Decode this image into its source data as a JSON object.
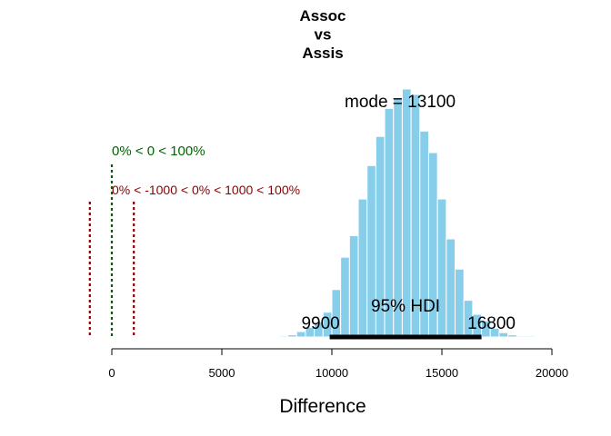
{
  "colors": {
    "bar_fill": "#87CEEB",
    "bar_edge": "#ffffff",
    "comp_line": "#006400",
    "rope_line": "#8B0000",
    "hdi_line": "#000000"
  },
  "chart_data": {
    "type": "bar",
    "title_lines": [
      "Assoc",
      "vs",
      "Assis"
    ],
    "xlabel": "Difference",
    "ylabel": "",
    "xlim": [
      0,
      20000
    ],
    "x_ticks": [
      0,
      5000,
      10000,
      15000,
      20000
    ],
    "x_tick_labels": [
      "0",
      "5000",
      "10000",
      "15000",
      "20000"
    ],
    "grid": false,
    "histogram": {
      "bin_width": 400,
      "bins": [
        {
          "start": 7600,
          "count": 1
        },
        {
          "start": 8000,
          "count": 2
        },
        {
          "start": 8400,
          "count": 5
        },
        {
          "start": 8800,
          "count": 9
        },
        {
          "start": 9200,
          "count": 14
        },
        {
          "start": 9600,
          "count": 23
        },
        {
          "start": 10000,
          "count": 44
        },
        {
          "start": 10400,
          "count": 74
        },
        {
          "start": 10800,
          "count": 94
        },
        {
          "start": 11200,
          "count": 128
        },
        {
          "start": 11600,
          "count": 159
        },
        {
          "start": 12000,
          "count": 186
        },
        {
          "start": 12400,
          "count": 212
        },
        {
          "start": 12800,
          "count": 222
        },
        {
          "start": 13200,
          "count": 230
        },
        {
          "start": 13600,
          "count": 225
        },
        {
          "start": 14000,
          "count": 191
        },
        {
          "start": 14400,
          "count": 171
        },
        {
          "start": 14800,
          "count": 128
        },
        {
          "start": 15200,
          "count": 91
        },
        {
          "start": 15600,
          "count": 63
        },
        {
          "start": 16000,
          "count": 34
        },
        {
          "start": 16400,
          "count": 21
        },
        {
          "start": 16800,
          "count": 15
        },
        {
          "start": 17200,
          "count": 8
        },
        {
          "start": 17600,
          "count": 4
        },
        {
          "start": 18000,
          "count": 2
        },
        {
          "start": 18400,
          "count": 1
        },
        {
          "start": 18800,
          "count": 1
        }
      ]
    },
    "mode": {
      "value": 13100,
      "label": "mode = 13100"
    },
    "hdi": {
      "low": 9900,
      "high": 16800,
      "label": "95% HDI",
      "low_label": "9900",
      "high_label": "16800"
    },
    "comparison": {
      "value": 0,
      "label": "0% < 0 < 100%"
    },
    "rope": {
      "low": -1000,
      "high": 1000,
      "label": "0% < -1000 < 0% < 1000 < 100%"
    }
  }
}
